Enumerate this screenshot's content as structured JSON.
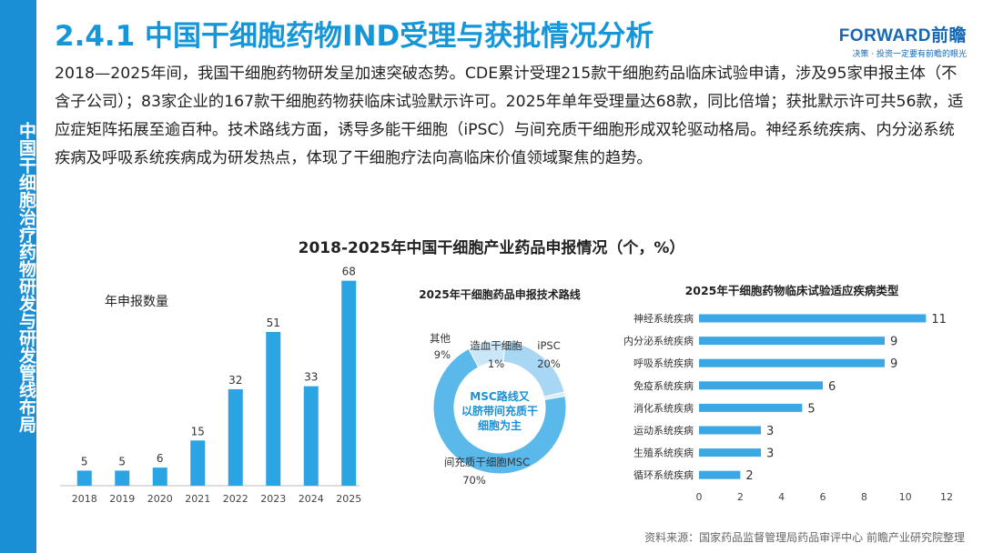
{
  "sidebar": {
    "text": "中国干细胞治疗药物研发与研发管线布局"
  },
  "header": {
    "title": "2.4.1 中国干细胞药物IND受理与获批情况分析",
    "logo_main": "FORWARD前瞻",
    "logo_sub": "决策 · 投资一定要有前瞻的眼光"
  },
  "body_text": "2018—2025年间，我国干细胞药物研发呈加速突破态势。CDE累计受理215款干细胞药品临床试验申请，涉及95家申报主体（不含子公司）；83家企业的167款干细胞药物获临床试验默示许可。2025年单年受理量达68款，同比倍增；获批默示许可共56款，适应症矩阵拓展至逾百种。技术路线方面，诱导多能干细胞（iPSC）与间充质干细胞形成双轮驱动格局。神经系统疾病、内分泌系统疾病及呼吸系统疾病成为研发热点，体现了干细胞疗法向高临床价值领域聚焦的趋势。",
  "section_title": "2018-2025年中国干细胞产业药品申报情况（个，%）",
  "source": "资料来源：国家药品监督管理局药品审评中心 前瞻产业研究院整理",
  "chart_data": [
    {
      "type": "bar",
      "title": "年申报数量",
      "categories": [
        "2018",
        "2019",
        "2020",
        "2021",
        "2022",
        "2023",
        "2024",
        "2025"
      ],
      "values": [
        5,
        5,
        6,
        15,
        32,
        51,
        33,
        68
      ],
      "ylim": [
        0,
        70
      ],
      "grid": false,
      "colors": {
        "bar": "#2aa4e3"
      }
    },
    {
      "type": "pie",
      "title": "2025年干细胞药品申报技术路线",
      "center_text": "MSC路线又以脐带间充质干细胞为主",
      "labels": [
        "间充质干细胞MSC",
        "iPSC",
        "造血干细胞",
        "其他"
      ],
      "values": [
        70,
        20,
        1,
        9
      ],
      "value_labels": [
        "70%",
        "20%",
        "1%",
        "9%"
      ],
      "colors": [
        "#5ab8ea",
        "#a8d7f3",
        "#d7ecf9",
        "#cbe6f7"
      ]
    },
    {
      "type": "bar",
      "orientation": "horizontal",
      "title": "2025年干细胞药物临床试验适应疾病类型",
      "categories": [
        "神经系统疾病",
        "内分泌系统疾病",
        "呼吸系统疾病",
        "免疫系统疾病",
        "消化系统疾病",
        "运动系统疾病",
        "生殖系统疾病",
        "循环系统疾病"
      ],
      "values": [
        11,
        9,
        9,
        6,
        5,
        3,
        3,
        2
      ],
      "xlim": [
        0,
        12
      ],
      "xticks": [
        "0",
        "2",
        "4",
        "6",
        "8",
        "10",
        "12"
      ],
      "grid": false,
      "colors": {
        "bar": "#3ba7e4"
      }
    }
  ]
}
